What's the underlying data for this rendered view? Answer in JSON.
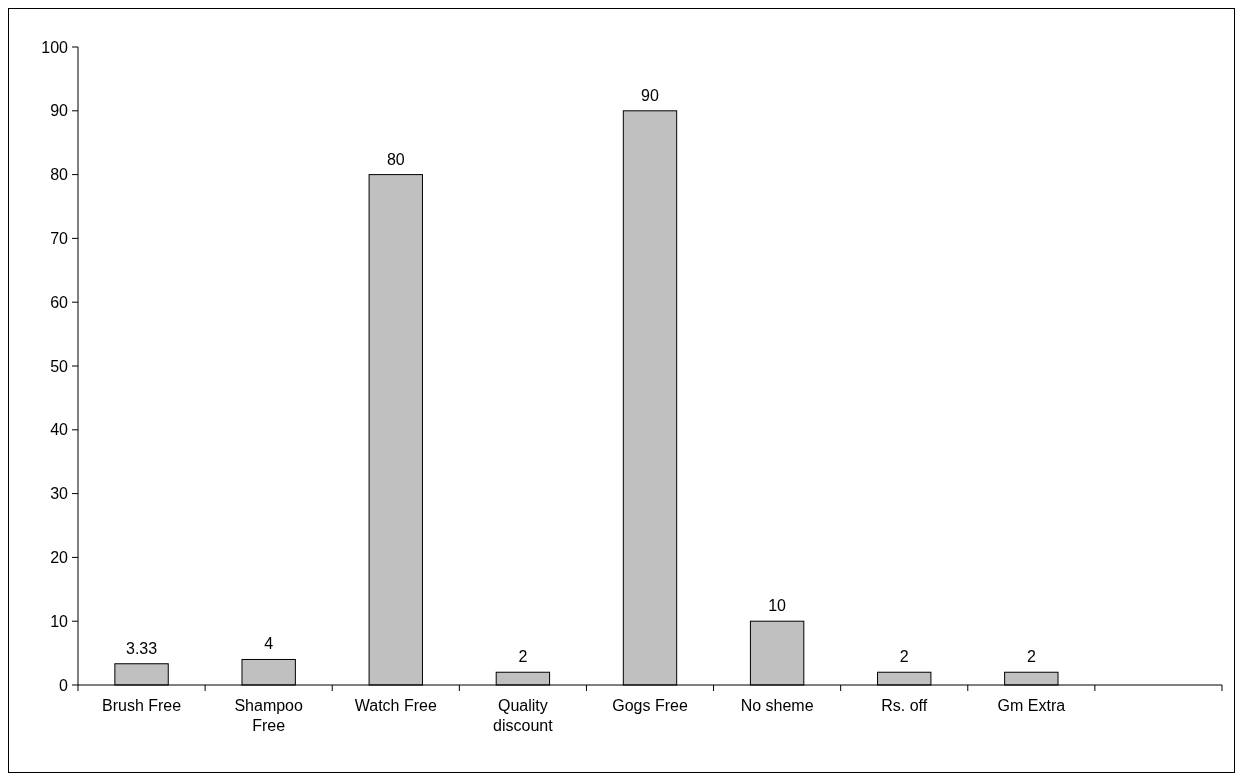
{
  "chart_data": {
    "type": "bar",
    "categories": [
      "Brush Free",
      "Shampoo Free",
      "Watch Free",
      "Quality discount",
      "Gogs Free",
      "No sheme",
      "Rs. off",
      "Gm Extra",
      null
    ],
    "values": [
      3.33,
      4,
      80,
      2,
      90,
      10,
      2,
      2,
      null
    ],
    "color": "#c0c0c0",
    "ylim": [
      0,
      100
    ],
    "yticks": [
      0,
      10,
      20,
      30,
      40,
      50,
      60,
      70,
      80,
      90,
      100
    ],
    "data_labels": true,
    "grid": false
  }
}
